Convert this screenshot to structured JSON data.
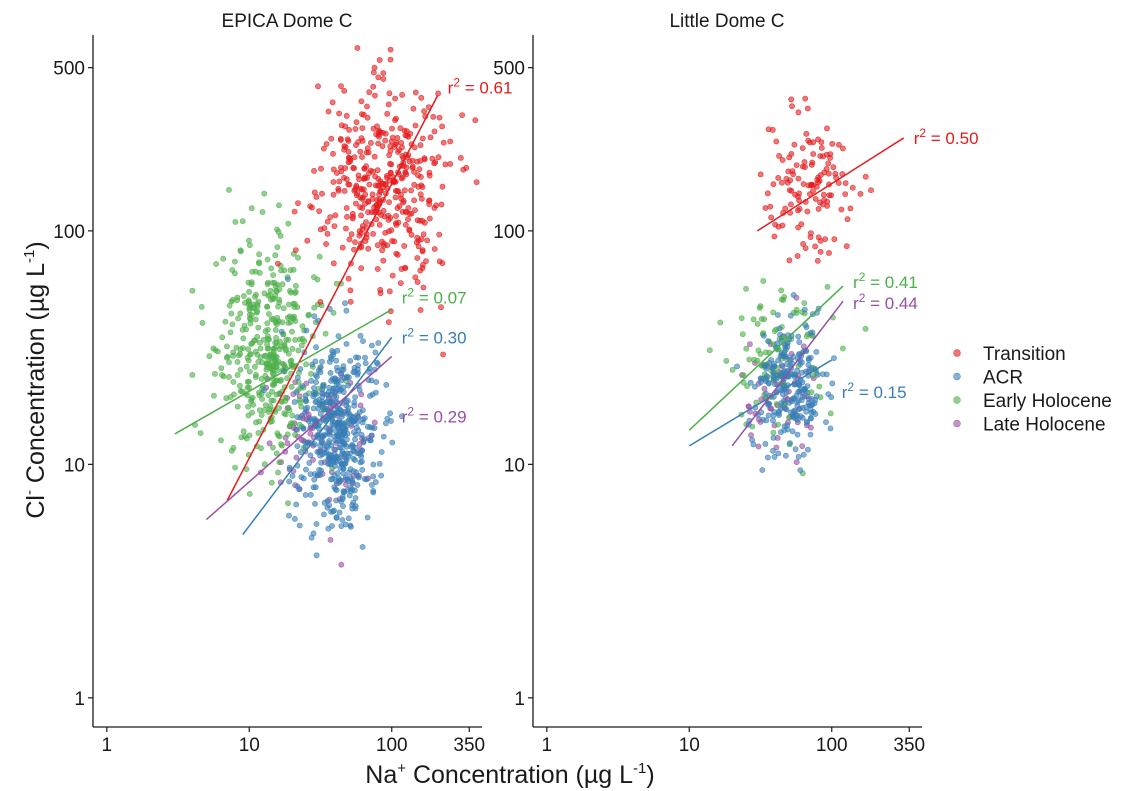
{
  "figure": {
    "ylabel_main": "Cl",
    "ylabel_sup": "-",
    "ylabel_rest": " Concentration (µg L",
    "ylabel_exp": "-1",
    "ylabel_close": ")",
    "xlabel_main": "Na",
    "xlabel_sup": "+",
    "xlabel_rest": " Concentration (µg L",
    "xlabel_exp": "-1",
    "xlabel_close": ")",
    "r2_prefix": "r",
    "r2_exp": "2"
  },
  "legend": {
    "items": [
      {
        "label": "Transition",
        "color": "#E41A1C"
      },
      {
        "label": "ACR",
        "color": "#377EB8"
      },
      {
        "label": "Early Holocene",
        "color": "#4DAF4A"
      },
      {
        "label": "Late Holocene",
        "color": "#984EA3"
      }
    ]
  },
  "chart_data": [
    {
      "type": "scatter",
      "title": "EPICA Dome C",
      "x_scale": "log",
      "y_scale": "log",
      "xlim": [
        0.8,
        430
      ],
      "ylim": [
        0.75,
        690
      ],
      "x_ticks": [
        1,
        10,
        100,
        350
      ],
      "y_ticks": [
        1,
        10,
        100,
        500
      ],
      "grid": false,
      "series": [
        {
          "name": "Transition",
          "color": "#E41A1C",
          "center": [
            85,
            160
          ],
          "spread": [
            0.22,
            0.22
          ],
          "n": 420,
          "fit": {
            "x": [
              7,
              210
            ],
            "y": [
              7,
              380
            ],
            "r2": "0.61"
          }
        },
        {
          "name": "ACR",
          "color": "#377EB8",
          "center": [
            42,
            14
          ],
          "spread": [
            0.15,
            0.2
          ],
          "n": 480,
          "fit": {
            "x": [
              9,
              100
            ],
            "y": [
              5,
              35
            ],
            "r2": "0.30"
          }
        },
        {
          "name": "Early Holocene",
          "color": "#4DAF4A",
          "center": [
            14,
            30
          ],
          "spread": [
            0.18,
            0.22
          ],
          "n": 420,
          "fit": {
            "x": [
              3,
              100
            ],
            "y": [
              13.5,
              46
            ],
            "r2": "0.07"
          }
        },
        {
          "name": "Late Holocene",
          "color": "#984EA3",
          "center": [
            30,
            13
          ],
          "spread": [
            0.18,
            0.15
          ],
          "n": 100,
          "fit": {
            "x": [
              5,
              100
            ],
            "y": [
              5.8,
              29
            ],
            "r2": "0.29"
          }
        }
      ]
    },
    {
      "type": "scatter",
      "title": "Little Dome C",
      "x_scale": "log",
      "y_scale": "log",
      "xlim": [
        0.8,
        430
      ],
      "ylim": [
        0.75,
        690
      ],
      "x_ticks": [
        1,
        10,
        100,
        350
      ],
      "y_ticks": [
        1,
        10,
        100,
        500
      ],
      "grid": false,
      "series": [
        {
          "name": "Transition",
          "color": "#E41A1C",
          "center": [
            70,
            160
          ],
          "spread": [
            0.15,
            0.15
          ],
          "n": 130,
          "fit": {
            "x": [
              30,
              320
            ],
            "y": [
              100,
              250
            ],
            "r2": "0.50"
          }
        },
        {
          "name": "ACR",
          "color": "#377EB8",
          "center": [
            50,
            22
          ],
          "spread": [
            0.13,
            0.15
          ],
          "n": 230,
          "fit": {
            "x": [
              10,
              100
            ],
            "y": [
              12,
              28
            ],
            "r2": "0.15"
          }
        },
        {
          "name": "Early Holocene",
          "color": "#4DAF4A",
          "center": [
            42,
            30
          ],
          "spread": [
            0.18,
            0.15
          ],
          "n": 110,
          "fit": {
            "x": [
              10,
              120
            ],
            "y": [
              14,
              58
            ],
            "r2": "0.41"
          }
        },
        {
          "name": "Late Holocene",
          "color": "#984EA3",
          "center": [
            45,
            20
          ],
          "spread": [
            0.14,
            0.12
          ],
          "n": 60,
          "fit": {
            "x": [
              20,
              120
            ],
            "y": [
              12,
              50
            ],
            "r2": "0.44"
          }
        }
      ]
    }
  ]
}
